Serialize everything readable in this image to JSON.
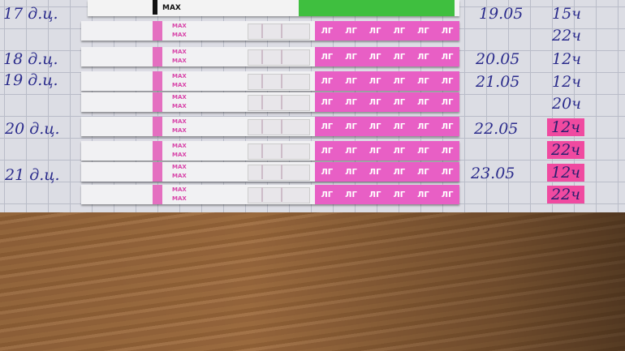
{
  "top_strip": {
    "label": "MAX",
    "result_color": "#3fbf3f"
  },
  "strips": {
    "count": 8,
    "max_label": "MAX",
    "lh_label": "ЛГ",
    "band_color": "#e46fc0"
  },
  "cycle_days": [
    "17 д.ц.",
    "18 д.ц.",
    "19 д.ц.",
    "20 д.ц.",
    "21 д.ц."
  ],
  "dates": [
    "19.05",
    "20.05",
    "21.05",
    "22.05",
    "23.05"
  ],
  "times": [
    {
      "text": "15ч",
      "highlight": false
    },
    {
      "text": "22ч",
      "highlight": false
    },
    {
      "text": "12ч",
      "highlight": false
    },
    {
      "text": "12ч",
      "highlight": false
    },
    {
      "text": "20ч",
      "highlight": false
    },
    {
      "text": "12ч",
      "highlight": true
    },
    {
      "text": "22ч",
      "highlight": true
    },
    {
      "text": "12ч",
      "highlight": true
    },
    {
      "text": "22ч",
      "highlight": true
    }
  ],
  "highlight_color": "#f04aa0"
}
